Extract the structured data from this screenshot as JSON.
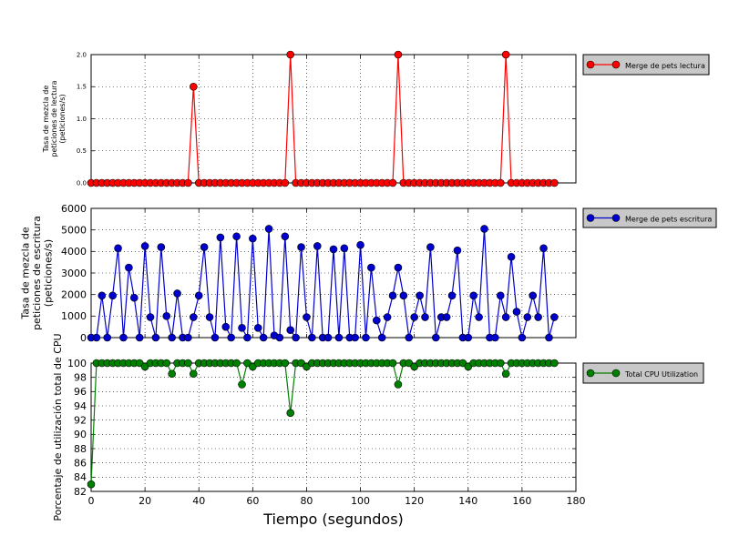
{
  "chart_data": [
    {
      "type": "line",
      "ylabel": "Tasa de mezcla de peticiones de lectura (peticiones/s)",
      "ylabel_lines": [
        "Tasa de mezcla de",
        "peticiones de lectura",
        "(peticiones/s)"
      ],
      "xlim": [
        0,
        180
      ],
      "ylim": [
        0,
        2.0
      ],
      "yticks": [
        "0.0",
        "0.5",
        "1.0",
        "1.5",
        "2.0"
      ],
      "ytick_values": [
        0,
        0.5,
        1.0,
        1.5,
        2.0
      ],
      "grid": true,
      "legend_placement": "outside-right",
      "series": [
        {
          "name": "Merge de pets lectura",
          "color": "#ff0000",
          "marker": "circle",
          "x": [
            0,
            2,
            4,
            6,
            8,
            10,
            12,
            14,
            16,
            18,
            20,
            22,
            24,
            26,
            28,
            30,
            32,
            34,
            36,
            38,
            40,
            42,
            44,
            46,
            48,
            50,
            52,
            54,
            56,
            58,
            60,
            62,
            64,
            66,
            68,
            70,
            72,
            74,
            76,
            78,
            80,
            82,
            84,
            86,
            88,
            90,
            92,
            94,
            96,
            98,
            100,
            102,
            104,
            106,
            108,
            110,
            112,
            114,
            116,
            118,
            120,
            122,
            124,
            126,
            128,
            130,
            132,
            134,
            136,
            138,
            140,
            142,
            144,
            146,
            148,
            150,
            152,
            154,
            156,
            158,
            160,
            162,
            164,
            166,
            168,
            170,
            172
          ],
          "y": [
            0,
            0,
            0,
            0,
            0,
            0,
            0,
            0,
            0,
            0,
            0,
            0,
            0,
            0,
            0,
            0,
            0,
            0,
            0,
            1.5,
            0,
            0,
            0,
            0,
            0,
            0,
            0,
            0,
            0,
            0,
            0,
            0,
            0,
            0,
            0,
            0,
            0,
            2.0,
            0,
            0,
            0,
            0,
            0,
            0,
            0,
            0,
            0,
            0,
            0,
            0,
            0,
            0,
            0,
            0,
            0,
            0,
            0,
            2.0,
            0,
            0,
            0,
            0,
            0,
            0,
            0,
            0,
            0,
            0,
            0,
            0,
            0,
            0,
            0,
            0,
            0,
            0,
            0,
            2.0,
            0,
            0,
            0,
            0,
            0,
            0,
            0,
            0,
            0
          ]
        }
      ]
    },
    {
      "type": "line",
      "ylabel": "Tasa de mezcla de peticiones de escritura (peticiones/s)",
      "ylabel_lines": [
        "Tasa de mezcla de",
        "peticiones de escritura",
        "(peticiones/s)"
      ],
      "xlim": [
        0,
        180
      ],
      "ylim": [
        0,
        6000
      ],
      "yticks": [
        "0",
        "1000",
        "2000",
        "3000",
        "4000",
        "5000",
        "6000"
      ],
      "ytick_values": [
        0,
        1000,
        2000,
        3000,
        4000,
        5000,
        6000
      ],
      "grid": true,
      "legend_placement": "outside-right",
      "series": [
        {
          "name": "Merge de pets escritura",
          "color": "#0000cc",
          "marker": "circle",
          "x": [
            0,
            2,
            4,
            6,
            8,
            10,
            12,
            14,
            16,
            18,
            20,
            22,
            24,
            26,
            28,
            30,
            32,
            34,
            36,
            38,
            40,
            42,
            44,
            46,
            48,
            50,
            52,
            54,
            56,
            58,
            60,
            62,
            64,
            66,
            68,
            70,
            72,
            74,
            76,
            78,
            80,
            82,
            84,
            86,
            88,
            90,
            92,
            94,
            96,
            98,
            100,
            102,
            104,
            106,
            108,
            110,
            112,
            114,
            116,
            118,
            120,
            122,
            124,
            126,
            128,
            130,
            132,
            134,
            136,
            138,
            140,
            142,
            144,
            146,
            148,
            150,
            152,
            154,
            156,
            158,
            160,
            162,
            164,
            166,
            168,
            170,
            172
          ],
          "y": [
            0,
            0,
            1950,
            0,
            1950,
            4150,
            0,
            3250,
            1850,
            0,
            4250,
            950,
            0,
            4200,
            1000,
            0,
            2050,
            0,
            0,
            950,
            1950,
            4200,
            950,
            0,
            4650,
            500,
            0,
            4700,
            450,
            0,
            4600,
            450,
            0,
            5050,
            100,
            0,
            4700,
            350,
            0,
            4200,
            950,
            0,
            4250,
            0,
            0,
            4100,
            0,
            4150,
            0,
            0,
            4300,
            0,
            3250,
            800,
            0,
            950,
            1950,
            3250,
            1950,
            0,
            950,
            1950,
            950,
            4200,
            0,
            950,
            950,
            1950,
            4050,
            0,
            0,
            1950,
            950,
            5050,
            0,
            0,
            1950,
            950,
            3750,
            1200,
            0,
            950,
            1950,
            950,
            4150,
            0,
            950
          ]
        }
      ]
    },
    {
      "type": "line",
      "ylabel": "Porcentaje de utilización total de CPU",
      "xlabel": "Tiempo (segundos)",
      "xlim": [
        0,
        180
      ],
      "xticks": [
        "0",
        "20",
        "40",
        "60",
        "80",
        "100",
        "120",
        "140",
        "160",
        "180"
      ],
      "xtick_values": [
        0,
        20,
        40,
        60,
        80,
        100,
        120,
        140,
        160,
        180
      ],
      "ylim": [
        82,
        100
      ],
      "yticks": [
        "82",
        "84",
        "86",
        "88",
        "90",
        "92",
        "94",
        "96",
        "98",
        "100"
      ],
      "ytick_values": [
        82,
        84,
        86,
        88,
        90,
        92,
        94,
        96,
        98,
        100
      ],
      "grid": true,
      "legend_placement": "outside-right",
      "series": [
        {
          "name": "Total CPU Utilization",
          "color": "#008000",
          "marker": "circle",
          "x": [
            0,
            2,
            4,
            6,
            8,
            10,
            12,
            14,
            16,
            18,
            20,
            22,
            24,
            26,
            28,
            30,
            32,
            34,
            36,
            38,
            40,
            42,
            44,
            46,
            48,
            50,
            52,
            54,
            56,
            58,
            60,
            62,
            64,
            66,
            68,
            70,
            72,
            74,
            76,
            78,
            80,
            82,
            84,
            86,
            88,
            90,
            92,
            94,
            96,
            98,
            100,
            102,
            104,
            106,
            108,
            110,
            112,
            114,
            116,
            118,
            120,
            122,
            124,
            126,
            128,
            130,
            132,
            134,
            136,
            138,
            140,
            142,
            144,
            146,
            148,
            150,
            152,
            154,
            156,
            158,
            160,
            162,
            164,
            166,
            168,
            170,
            172
          ],
          "y": [
            83,
            100,
            100,
            100,
            100,
            100,
            100,
            100,
            100,
            100,
            99.5,
            100,
            100,
            100,
            100,
            98.5,
            100,
            100,
            100,
            98.5,
            100,
            100,
            100,
            100,
            100,
            100,
            100,
            100,
            97,
            100,
            99.5,
            100,
            100,
            100,
            100,
            100,
            100,
            93,
            100,
            100,
            99.5,
            100,
            100,
            100,
            100,
            100,
            100,
            100,
            100,
            100,
            100,
            100,
            100,
            100,
            100,
            100,
            100,
            97,
            100,
            100,
            99.5,
            100,
            100,
            100,
            100,
            100,
            100,
            100,
            100,
            100,
            99.5,
            100,
            100,
            100,
            100,
            100,
            100,
            98.5,
            100,
            100,
            100,
            100,
            100,
            100,
            100,
            100,
            100
          ]
        }
      ]
    }
  ]
}
